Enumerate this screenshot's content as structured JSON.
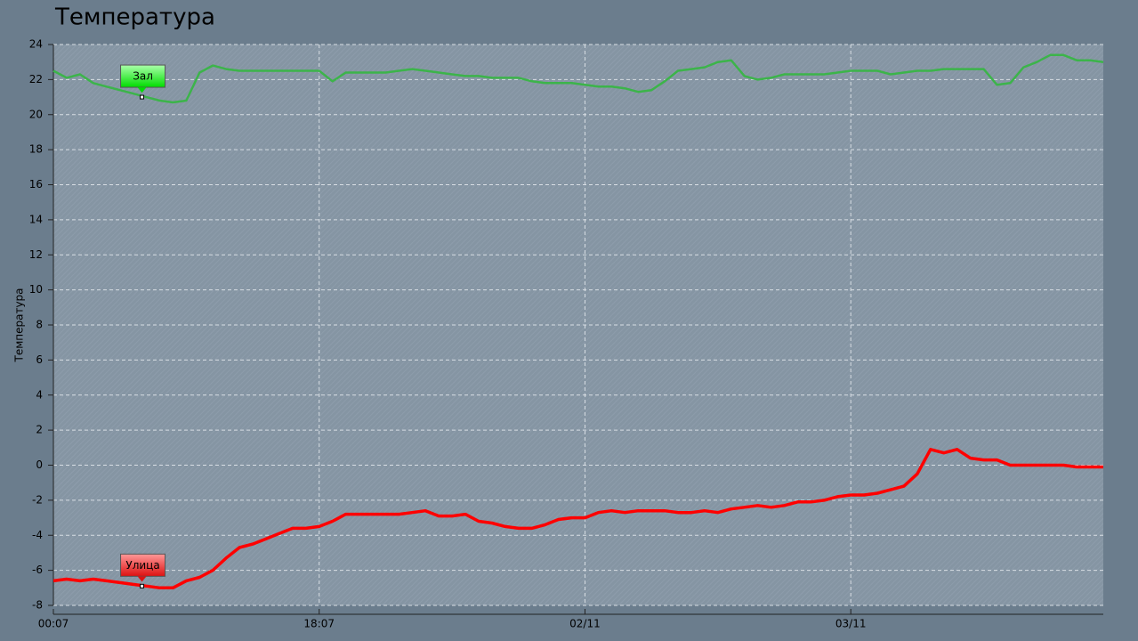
{
  "chart_data": {
    "type": "line",
    "title": "Температура",
    "y_label": "Температура",
    "categories": [
      "00:07",
      null,
      null,
      null,
      null,
      null,
      null,
      null,
      null,
      null,
      null,
      null,
      null,
      null,
      null,
      null,
      null,
      null,
      null,
      null,
      "18:07",
      null,
      null,
      null,
      null,
      null,
      null,
      null,
      null,
      null,
      null,
      null,
      null,
      null,
      null,
      null,
      null,
      null,
      null,
      null,
      "02/11",
      null,
      null,
      null,
      null,
      null,
      null,
      null,
      null,
      null,
      null,
      null,
      null,
      null,
      null,
      null,
      null,
      null,
      null,
      null,
      "03/11",
      null,
      null,
      null,
      null,
      null,
      null,
      null,
      null,
      null,
      null,
      null,
      null,
      null,
      null,
      null,
      null,
      null,
      null,
      null
    ],
    "series": [
      {
        "name": "Зал",
        "color": "#3cb44a",
        "values": [
          22.5,
          22.1,
          22.3,
          21.8,
          21.6,
          21.4,
          21.2,
          21.0,
          20.8,
          20.7,
          20.8,
          22.4,
          22.8,
          22.6,
          22.5,
          22.5,
          22.5,
          22.5,
          22.5,
          22.5,
          22.5,
          21.9,
          22.4,
          22.4,
          22.4,
          22.4,
          22.5,
          22.6,
          22.5,
          22.4,
          22.3,
          22.2,
          22.2,
          22.1,
          22.1,
          22.1,
          21.9,
          21.8,
          21.8,
          21.8,
          21.7,
          21.6,
          21.6,
          21.5,
          21.3,
          21.4,
          21.9,
          22.5,
          22.6,
          22.7,
          23.0,
          23.1,
          22.2,
          22.0,
          22.1,
          22.3,
          22.3,
          22.3,
          22.3,
          22.4,
          22.5,
          22.5,
          22.5,
          22.3,
          22.4,
          22.5,
          22.5,
          22.6,
          22.6,
          22.6,
          22.6,
          21.7,
          21.8,
          22.7,
          23.0,
          23.4,
          23.4,
          23.1,
          23.1,
          23.0
        ]
      },
      {
        "name": "Улица",
        "color": "#ff0000",
        "values": [
          -6.6,
          -6.5,
          -6.6,
          -6.5,
          -6.6,
          -6.7,
          -6.8,
          -6.9,
          -7.0,
          -7.0,
          -6.6,
          -6.4,
          -6.0,
          -5.3,
          -4.7,
          -4.5,
          -4.2,
          -3.9,
          -3.6,
          -3.6,
          -3.5,
          -3.2,
          -2.8,
          -2.8,
          -2.8,
          -2.8,
          -2.8,
          -2.7,
          -2.6,
          -2.9,
          -2.9,
          -2.8,
          -3.2,
          -3.3,
          -3.5,
          -3.6,
          -3.6,
          -3.4,
          -3.1,
          -3.0,
          -3.0,
          -2.7,
          -2.6,
          -2.7,
          -2.6,
          -2.6,
          -2.6,
          -2.7,
          -2.7,
          -2.6,
          -2.7,
          -2.5,
          -2.4,
          -2.3,
          -2.4,
          -2.3,
          -2.1,
          -2.1,
          -2.0,
          -1.8,
          -1.7,
          -1.7,
          -1.6,
          -1.4,
          -1.2,
          -0.5,
          0.9,
          0.7,
          0.9,
          0.4,
          0.3,
          0.3,
          0.0,
          0,
          0,
          0,
          0,
          -0.1,
          -0.1,
          -0.1
        ]
      }
    ],
    "ylim": [
      -8,
      24
    ],
    "yticks": [
      -8,
      -6,
      -4,
      -2,
      0,
      2,
      4,
      6,
      8,
      10,
      12,
      14,
      16,
      18,
      20,
      22,
      24
    ],
    "grid": true
  }
}
